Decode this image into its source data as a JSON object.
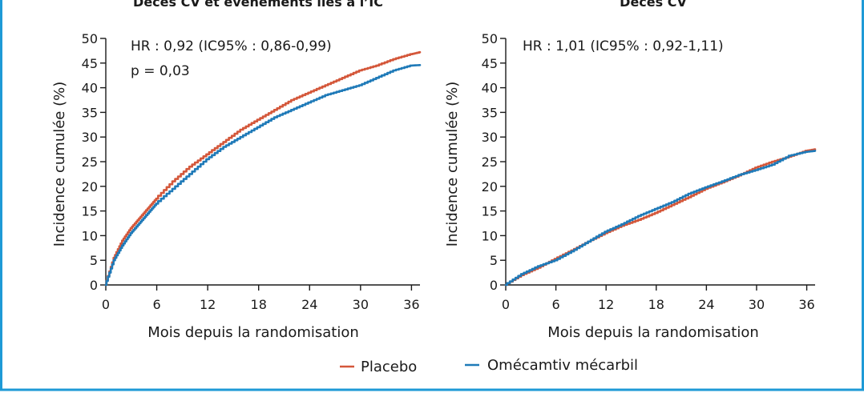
{
  "colors": {
    "frame": "#1e9ad6",
    "placebo": "#d4573a",
    "omecamtiv": "#1f7ab8"
  },
  "legend": {
    "placebo": "Placebo",
    "omecamtiv": "Omécamtiv mécarbil"
  },
  "chart_data": [
    {
      "type": "line",
      "title": "Décès CV et événements liés à l’IC",
      "xlabel": "Mois depuis la randomisation",
      "ylabel": "Incidence cumulée (%)",
      "xlim": [
        0,
        37
      ],
      "ylim": [
        0,
        50
      ],
      "xticks": [
        0,
        6,
        12,
        18,
        24,
        30,
        36
      ],
      "yticks": [
        0,
        5,
        10,
        15,
        20,
        25,
        30,
        35,
        40,
        45,
        50
      ],
      "annotations": [
        "HR : 0,92 (IC95% : 0,86-0,99)",
        "p = 0,03"
      ],
      "grid": false,
      "series": [
        {
          "name": "Placebo",
          "color": "#d4573a",
          "x": [
            0,
            1,
            2,
            3,
            4,
            5,
            6,
            8,
            10,
            12,
            14,
            16,
            18,
            20,
            22,
            24,
            26,
            28,
            30,
            32,
            34,
            36,
            37
          ],
          "y": [
            0,
            5.5,
            9,
            11.5,
            13.5,
            15.5,
            17.5,
            21,
            24,
            26.5,
            29,
            31.5,
            33.5,
            35.5,
            37.5,
            39,
            40.5,
            42,
            43.5,
            44.5,
            45.8,
            46.8,
            47.2
          ]
        },
        {
          "name": "Omécamtiv mécarbil",
          "color": "#1f7ab8",
          "x": [
            0,
            1,
            2,
            3,
            4,
            5,
            6,
            8,
            10,
            12,
            14,
            16,
            18,
            20,
            22,
            24,
            26,
            28,
            30,
            32,
            34,
            36,
            37
          ],
          "y": [
            0,
            5,
            8,
            10.5,
            12.5,
            14.5,
            16.5,
            19.5,
            22.5,
            25.5,
            28,
            30,
            32,
            34,
            35.5,
            37,
            38.5,
            39.5,
            40.5,
            42,
            43.5,
            44.5,
            44.6
          ]
        }
      ]
    },
    {
      "type": "line",
      "title": "Décès CV",
      "xlabel": "Mois depuis la randomisation",
      "ylabel": "Incidence cumulée (%)",
      "xlim": [
        0,
        37
      ],
      "ylim": [
        0,
        50
      ],
      "xticks": [
        0,
        6,
        12,
        18,
        24,
        30,
        36
      ],
      "yticks": [
        0,
        5,
        10,
        15,
        20,
        25,
        30,
        35,
        40,
        45,
        50
      ],
      "annotations": [
        "HR : 1,01 (IC95% : 0,92-1,11)"
      ],
      "grid": false,
      "series": [
        {
          "name": "Placebo",
          "color": "#d4573a",
          "x": [
            0,
            2,
            4,
            6,
            8,
            10,
            12,
            14,
            16,
            18,
            20,
            22,
            24,
            26,
            28,
            30,
            32,
            34,
            36,
            37
          ],
          "y": [
            0,
            2,
            3.5,
            5.3,
            7,
            8.8,
            10.5,
            12,
            13.2,
            14.6,
            16.2,
            17.8,
            19.5,
            20.8,
            22.2,
            23.8,
            25,
            26,
            27.2,
            27.5
          ]
        },
        {
          "name": "Omécamtiv mécarbil",
          "color": "#1f7ab8",
          "x": [
            0,
            2,
            4,
            6,
            8,
            10,
            12,
            14,
            16,
            18,
            20,
            22,
            24,
            26,
            28,
            30,
            32,
            34,
            36,
            37
          ],
          "y": [
            0,
            2.2,
            3.8,
            5,
            6.8,
            8.8,
            10.8,
            12.3,
            14,
            15.4,
            16.8,
            18.5,
            19.8,
            21,
            22.3,
            23.3,
            24.4,
            26.2,
            27,
            27.2
          ]
        }
      ]
    }
  ]
}
